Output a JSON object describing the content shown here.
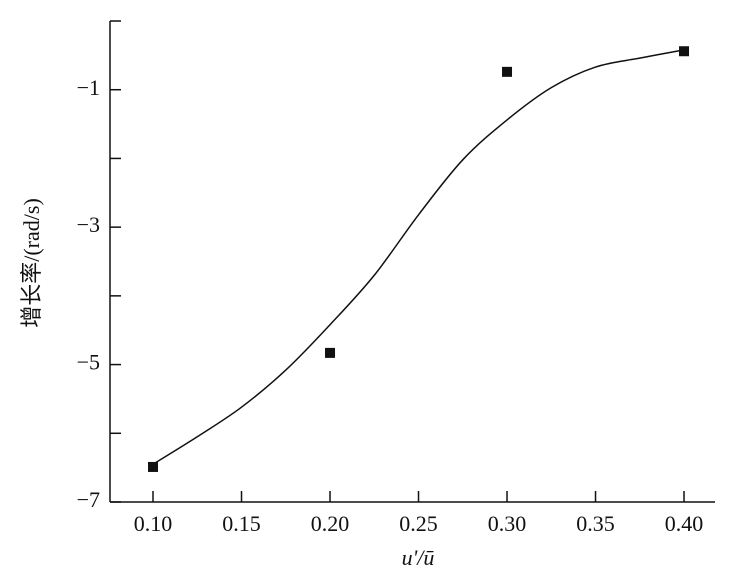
{
  "chart_data": {
    "type": "scatter",
    "x_label": "u'/ū",
    "y_label": "增长率/(rad/s)",
    "x": [
      0.1,
      0.2,
      0.3,
      0.4
    ],
    "values": [
      -6.49,
      -4.83,
      -0.74,
      -0.44
    ],
    "color": "#111111",
    "curve": {
      "x": [
        0.1,
        0.125,
        0.15,
        0.175,
        0.2,
        0.225,
        0.25,
        0.275,
        0.3,
        0.325,
        0.35,
        0.375,
        0.4
      ],
      "values": [
        -6.45,
        -6.05,
        -5.62,
        -5.08,
        -4.42,
        -3.7,
        -2.82,
        -2.02,
        -1.44,
        -0.97,
        -0.67,
        -0.54,
        -0.42
      ]
    },
    "xlim": [
      0.0757,
      0.4175
    ],
    "ylim": [
      -7,
      0
    ],
    "xticks": [
      {
        "value": 0.1,
        "label": "0.10"
      },
      {
        "value": 0.15,
        "label": "0.15"
      },
      {
        "value": 0.2,
        "label": "0.20"
      },
      {
        "value": 0.25,
        "label": "0.25"
      },
      {
        "value": 0.3,
        "label": "0.30"
      },
      {
        "value": 0.35,
        "label": "0.35"
      },
      {
        "value": 0.4,
        "label": "0.40"
      }
    ],
    "yticks": [
      {
        "value": -7,
        "label": "−7"
      },
      {
        "value": -5,
        "label": "−5"
      },
      {
        "value": -3,
        "label": "−3"
      },
      {
        "value": -1,
        "label": "−1"
      }
    ],
    "yminor": [
      -6,
      -4,
      -2,
      0
    ]
  }
}
